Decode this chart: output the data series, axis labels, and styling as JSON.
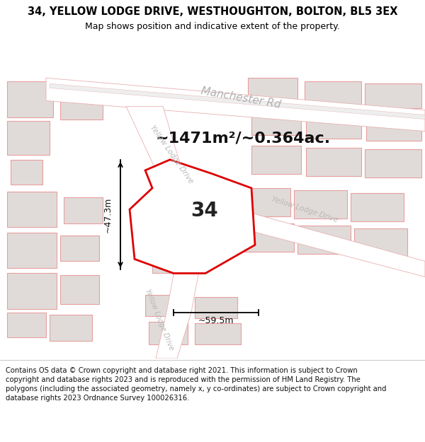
{
  "title_line1": "34, YELLOW LODGE DRIVE, WESTHOUGHTON, BOLTON, BL5 3EX",
  "title_line2": "Map shows position and indicative extent of the property.",
  "footer_text": "Contains OS data © Crown copyright and database right 2021. This information is subject to Crown copyright and database rights 2023 and is reproduced with the permission of HM Land Registry. The polygons (including the associated geometry, namely x, y co-ordinates) are subject to Crown copyright and database rights 2023 Ordnance Survey 100026316.",
  "area_text": "~1471m²/~0.364ac.",
  "label_34": "34",
  "dim_width": "~59.5m",
  "dim_height": "~47.3m",
  "road_label_manchester": "Manchester Rd",
  "road_label_yld_left": "Yellow Lodge Drive",
  "road_label_yld_right": "Yellow Lodge Drive",
  "road_label_yld_bottom": "Yellow Lodge Drive",
  "bg_color": "#f7f4f2",
  "map_bg": "#ffffff",
  "highlight_fill": "#ffffff",
  "highlight_edge": "#dd0000",
  "road_color": "#ffffff",
  "road_edge": "#e8b0b0",
  "block_fill": "#e0dbd8",
  "block_edge": "#e8a0a0",
  "title_fontsize": 10.5,
  "subtitle_fontsize": 9,
  "footer_fontsize": 7.2,
  "area_fontsize": 16
}
